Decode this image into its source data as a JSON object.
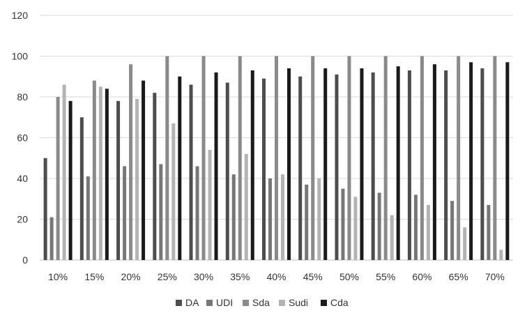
{
  "chart_data": {
    "type": "bar",
    "categories": [
      "10%",
      "15%",
      "20%",
      "25%",
      "30%",
      "35%",
      "40%",
      "45%",
      "50%",
      "55%",
      "60%",
      "65%",
      "70%"
    ],
    "series": [
      {
        "name": "DA",
        "color": "#4d4d4d",
        "values": [
          50,
          70,
          78,
          82,
          86,
          87,
          89,
          90,
          91,
          92,
          93,
          93,
          94
        ]
      },
      {
        "name": "UDI",
        "color": "#777777",
        "values": [
          21,
          41,
          46,
          47,
          46,
          42,
          40,
          37,
          35,
          33,
          32,
          29,
          27
        ]
      },
      {
        "name": "Sda",
        "color": "#8a8a8a",
        "values": [
          80,
          88,
          96,
          100,
          100,
          100,
          100,
          100,
          100,
          100,
          100,
          100,
          100
        ]
      },
      {
        "name": "Sudi",
        "color": "#b3b3b3",
        "values": [
          86,
          85,
          79,
          67,
          54,
          52,
          42,
          40,
          31,
          22,
          27,
          16,
          5
        ]
      },
      {
        "name": "Cda",
        "color": "#1a1a1a",
        "values": [
          78,
          84,
          88,
          90,
          92,
          93,
          94,
          94,
          94,
          95,
          96,
          97,
          97
        ]
      }
    ],
    "yticks": [
      "0",
      "20",
      "40",
      "60",
      "80",
      "100",
      "120"
    ],
    "ylim": [
      0,
      120
    ],
    "grid": true,
    "legend_position": "bottom"
  }
}
